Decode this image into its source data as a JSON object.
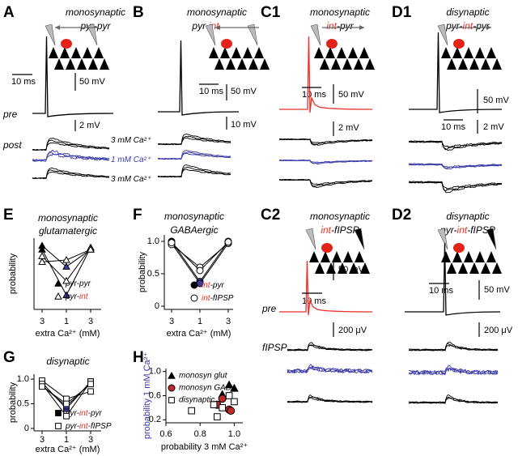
{
  "panels": {
    "A": {
      "label": "A",
      "title": "monosynaptic",
      "subtitle": [
        {
          "text": "pyr-pyr"
        }
      ],
      "scale_time": "10 ms",
      "scale_pre": "50 mV",
      "pre": "pre",
      "scale_post": "2 mV",
      "post": "post",
      "conditions": [
        [
          {
            "text": "3 mM Ca²⁺"
          }
        ],
        [
          {
            "text": "1 mM Ca²⁺",
            "color": "#3b3ba8"
          }
        ],
        [
          {
            "text": "3 mM Ca²⁺"
          }
        ]
      ]
    },
    "B": {
      "label": "B",
      "title": "monosynaptic",
      "subtitle": [
        {
          "text": "pyr-"
        },
        {
          "text": "int",
          "color": "#e8312a"
        }
      ],
      "scale_time": "10 ms",
      "scale_pre": "50 mV",
      "scale_post": "10 mV"
    },
    "C1": {
      "label": "C1",
      "title": "monosynaptic",
      "subtitle": [
        {
          "text": "int",
          "color": "#e8312a"
        },
        {
          "text": "-pyr"
        }
      ],
      "scale_time": "10 ms",
      "scale_pre": "50 mV",
      "scale_post": "2 mV"
    },
    "D1": {
      "label": "D1",
      "title": "disynaptic",
      "subtitle": [
        {
          "text": "pyr-"
        },
        {
          "text": "int",
          "color": "#e8312a"
        },
        {
          "text": "-pyr"
        }
      ],
      "scale_time": "10 ms",
      "scale_pre": "50 mV",
      "scale_post": "2 mV"
    },
    "C2": {
      "label": "C2",
      "title": "monosynaptic",
      "subtitle": [
        {
          "text": "int",
          "color": "#e8312a"
        },
        {
          "text": "-fIPSP"
        }
      ],
      "scale_time": "10 ms",
      "scale_pre": "50 mV",
      "pre": "pre",
      "scale_post": "200 μV",
      "post": "fIPSP"
    },
    "D2": {
      "label": "D2",
      "title": "disynaptic",
      "subtitle": [
        {
          "text": "pyr-"
        },
        {
          "text": "int",
          "color": "#e8312a"
        },
        {
          "text": "-fIPSP"
        }
      ],
      "scale_time": "10 ms",
      "scale_pre": "50 mV",
      "scale_post": "200 μV"
    }
  },
  "chart_data": [
    {
      "type": "line",
      "label": "E",
      "title": "monosynaptic",
      "subtitle": "glutamatergic",
      "ylabel": "probability",
      "xlabel": "extra Ca²⁺ (mM)",
      "categories": [
        "3",
        "1",
        "3"
      ],
      "category_colors": [
        "#000000",
        "#3b3ba8",
        "#000000"
      ],
      "ylim": [
        0.3,
        1.05
      ],
      "color": "#000000",
      "series": [
        {
          "name": [
            {
              "text": "pyr-pyr"
            }
          ],
          "marker": "filled-triangle",
          "values": [
            [
              0.97,
              0.75,
              0.93
            ],
            [
              0.93,
              0.45,
              0.95
            ]
          ]
        },
        {
          "name": [
            {
              "text": "pyr-"
            },
            {
              "text": "int",
              "color": "#e8312a"
            }
          ],
          "marker": "open-triangle",
          "values": [
            [
              0.86,
              0.6,
              0.95
            ],
            [
              0.8,
              0.82,
              0.93
            ]
          ]
        }
      ]
    },
    {
      "type": "line",
      "label": "F",
      "title": "monosynaptic",
      "subtitle": "GABAergic",
      "ylabel": "probability",
      "xlabel": "extra Ca²⁺ (mM)",
      "categories": [
        "3",
        "1",
        "3"
      ],
      "category_colors": [
        "#000000",
        "#3b3ba8",
        "#000000"
      ],
      "ylim": [
        -0.05,
        1.1
      ],
      "yticks": [
        0,
        0.5,
        {
          "value": 1,
          "label": "1.0"
        }
      ],
      "color": "#000000",
      "series": [
        {
          "name": [
            {
              "text": "int",
              "color": "#e8312a"
            },
            {
              "text": "-pyr"
            }
          ],
          "marker": "filled-circle",
          "values": [
            [
              1.0,
              0.38,
              1.0
            ],
            [
              0.97,
              0.35,
              0.97
            ]
          ]
        },
        {
          "name": [
            {
              "text": "int",
              "color": "#e8312a"
            },
            {
              "text": "-fIPSP"
            }
          ],
          "marker": "open-circle",
          "values": [
            [
              0.95,
              0.6,
              0.97
            ],
            [
              0.98,
              0.55,
              0.99
            ]
          ]
        }
      ]
    },
    {
      "type": "line",
      "label": "G",
      "title": "disynaptic",
      "ylabel": "probability",
      "xlabel": "extra Ca²⁺ (mM)",
      "categories": [
        "3",
        "1",
        "3"
      ],
      "category_colors": [
        "#000000",
        "#3b3ba8",
        "#000000"
      ],
      "ylim": [
        -0.05,
        1.1
      ],
      "yticks": [
        0,
        0.5,
        {
          "value": 1,
          "label": "1.0"
        }
      ],
      "color": "#000000",
      "series": [
        {
          "name": [
            {
              "text": "pyr-"
            },
            {
              "text": "int",
              "color": "#e8312a"
            },
            {
              "text": "-pyr"
            }
          ],
          "marker": "filled-square",
          "values": [
            [
              0.93,
              0.4,
              0.95
            ],
            [
              0.87,
              0.45,
              0.92
            ]
          ]
        },
        {
          "name": [
            {
              "text": "pyr-"
            },
            {
              "text": "int",
              "color": "#e8312a"
            },
            {
              "text": "-fIPSP"
            }
          ],
          "marker": "open-square",
          "values": [
            [
              0.97,
              0.6,
              0.75
            ],
            [
              0.9,
              0.25,
              0.95
            ],
            [
              0.85,
              0.5,
              0.9
            ]
          ]
        }
      ]
    },
    {
      "type": "scatter",
      "label": "H",
      "ylabel": [
        {
          "text": "probability 1 mM Ca²⁺",
          "color": "#3b3ba8"
        }
      ],
      "xlabel": "probability 3 mM Ca²⁺",
      "xlim": [
        0.6,
        1.05
      ],
      "xticks": [
        0.6,
        0.8,
        {
          "value": 1,
          "label": "1.0"
        }
      ],
      "ylim": [
        0.15,
        1.05
      ],
      "yticks": [
        0.2,
        0.6,
        {
          "value": 1,
          "label": "1.0"
        }
      ],
      "series": [
        {
          "name": "monosyn glut",
          "marker": "filled-triangle",
          "color": "#000000",
          "x": [
            0.97,
            0.93,
            1.0
          ],
          "values": [
            0.78,
            0.62,
            0.72
          ]
        },
        {
          "name": "monosyn GABA",
          "marker": "filled-circle",
          "color": "#c0282a",
          "x": [
            0.97,
            0.98,
            0.93,
            0.9
          ],
          "values": [
            0.37,
            0.35,
            0.55,
            0.45
          ]
        },
        {
          "name": "disynaptic",
          "marker": "open-square",
          "color": "#000000",
          "x": [
            0.93,
            0.88,
            0.97,
            0.9,
            0.75,
            1.0
          ],
          "values": [
            0.4,
            0.45,
            0.6,
            0.25,
            0.35,
            0.5
          ]
        }
      ]
    }
  ]
}
